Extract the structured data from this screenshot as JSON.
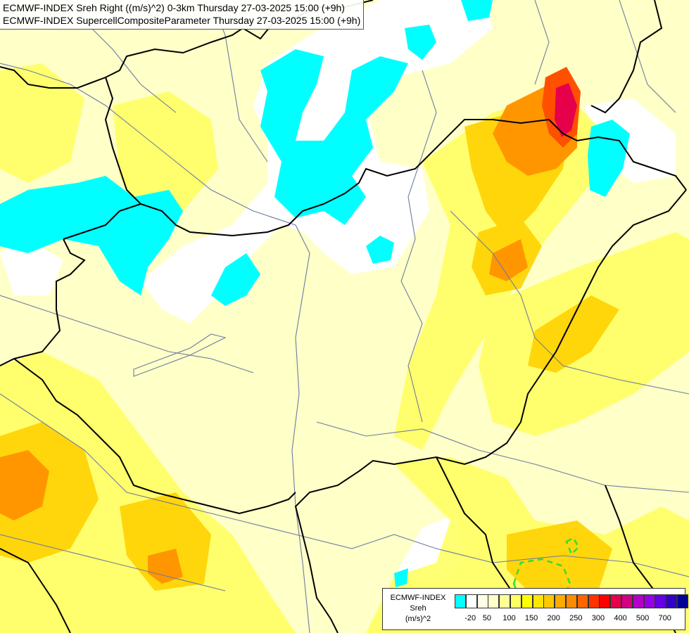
{
  "title": {
    "line1": "ECMWF-INDEX Sreh Right ((m/s)^2) 0-3km Thursday 27-03-2025 15:00 (+9h)",
    "line2": "ECMWF-INDEX SupercellCompositeParameter Thursday 27-03-2025 15:00 (+9h)"
  },
  "legend": {
    "source": "ECMWF-INDEX",
    "variable": "Sreh",
    "unit": "(m/s)^2",
    "colors": [
      "#00ffff",
      "#ffffff",
      "#ffffe6",
      "#ffffc8",
      "#ffff96",
      "#ffff64",
      "#ffff00",
      "#ffe600",
      "#ffc800",
      "#ffaa00",
      "#ff8c00",
      "#ff6400",
      "#ff3200",
      "#ff0000",
      "#e6004b",
      "#d20082",
      "#b400c8",
      "#9600e6",
      "#6400e6",
      "#3200c8",
      "#000096"
    ],
    "ticks": [
      "-20",
      "50",
      "100",
      "150",
      "200",
      "250",
      "300",
      "400",
      "500",
      "700"
    ]
  },
  "colors": {
    "border": "#000000",
    "river": "#6e7ca0",
    "cyan": "#00ffff",
    "contour": "#33dd33"
  }
}
